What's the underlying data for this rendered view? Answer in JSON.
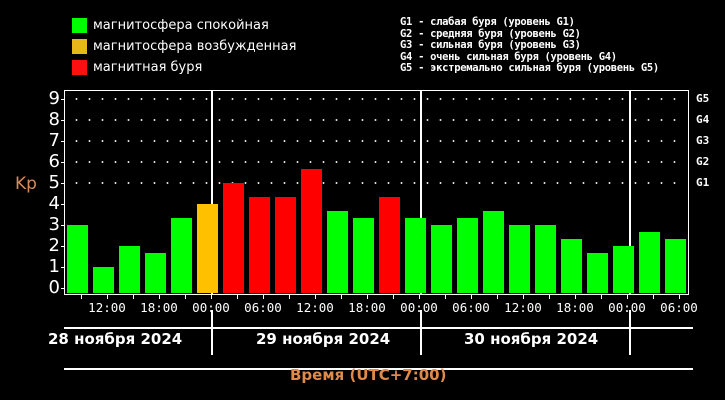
{
  "legend": [
    {
      "label": "магнитосфера спокойная",
      "color": "#00ff00"
    },
    {
      "label": "магнитосфера возбужденная",
      "color": "#ffc000"
    },
    {
      "label": "магнитная буря",
      "color": "#ff0000"
    }
  ],
  "g_legend": [
    "G1 - слабая буря (уровень G1)",
    "G2 - средняя буря (уровень G2)",
    "G3 - сильная буря (уровень G3)",
    "G4 - очень сильная буря (уровень G4)",
    "G5 - экстремально сильная буря (уровень G5)"
  ],
  "y_axis": {
    "label": "Kp",
    "ticks": [
      "0",
      "1",
      "2",
      "3",
      "4",
      "5",
      "6",
      "7",
      "8",
      "9"
    ]
  },
  "g_axis": [
    "G1",
    "G2",
    "G3",
    "G4",
    "G5"
  ],
  "x_axis": {
    "title": "Время (UTC+7:00)",
    "time_labels": [
      "12:00",
      "18:00",
      "00:00",
      "06:00",
      "12:00",
      "18:00",
      "00:00",
      "06:00",
      "12:00",
      "18:00",
      "00:00",
      "06:00"
    ],
    "dates": [
      "28 ноября 2024",
      "29 ноября 2024",
      "30 ноября 2024"
    ]
  },
  "colors": {
    "quiet": "#00ff00",
    "active": "#ffc000",
    "storm": "#ff0000",
    "axis_title": "#e08a4a"
  },
  "chart_data": {
    "type": "bar",
    "title": "",
    "xlabel": "Время (UTC+7:00)",
    "ylabel": "Kp",
    "ylim": [
      0,
      9
    ],
    "secondary_y_labels": {
      "5": "G1",
      "6": "G2",
      "7": "G3",
      "8": "G4",
      "9": "G5"
    },
    "categories": [
      "28 ноя 09:00",
      "28 ноя 12:00",
      "28 ноя 15:00",
      "28 ноя 18:00",
      "28 ноя 21:00",
      "29 ноя 00:00",
      "29 ноя 03:00",
      "29 ноя 06:00",
      "29 ноя 09:00",
      "29 ноя 12:00",
      "29 ноя 15:00",
      "29 ноя 18:00",
      "29 ноя 21:00",
      "30 ноя 00:00",
      "30 ноя 03:00",
      "30 ноя 06:00",
      "30 ноя 09:00",
      "30 ноя 12:00",
      "30 ноя 15:00",
      "30 ноя 18:00",
      "30 ноя 21:00",
      "01 дек 00:00",
      "01 дек 03:00",
      "01 дек 06:00"
    ],
    "values": [
      3.0,
      1.0,
      2.0,
      1.67,
      3.33,
      4.0,
      5.0,
      4.33,
      4.33,
      5.67,
      3.67,
      3.33,
      4.33,
      3.33,
      3.0,
      3.33,
      3.67,
      3.0,
      3.0,
      2.33,
      1.67,
      2.0,
      2.67,
      2.33
    ],
    "bar_status": [
      "quiet",
      "quiet",
      "quiet",
      "quiet",
      "quiet",
      "active",
      "storm",
      "storm",
      "storm",
      "storm",
      "quiet",
      "quiet",
      "storm",
      "quiet",
      "quiet",
      "quiet",
      "quiet",
      "quiet",
      "quiet",
      "quiet",
      "quiet",
      "quiet",
      "quiet",
      "quiet"
    ],
    "legend": [
      "магнитосфера спокойная",
      "магнитосфера возбужденная",
      "магнитная буря"
    ],
    "grid": "dotted horizontal lines at Kp 5-9",
    "legend_position": "top"
  }
}
